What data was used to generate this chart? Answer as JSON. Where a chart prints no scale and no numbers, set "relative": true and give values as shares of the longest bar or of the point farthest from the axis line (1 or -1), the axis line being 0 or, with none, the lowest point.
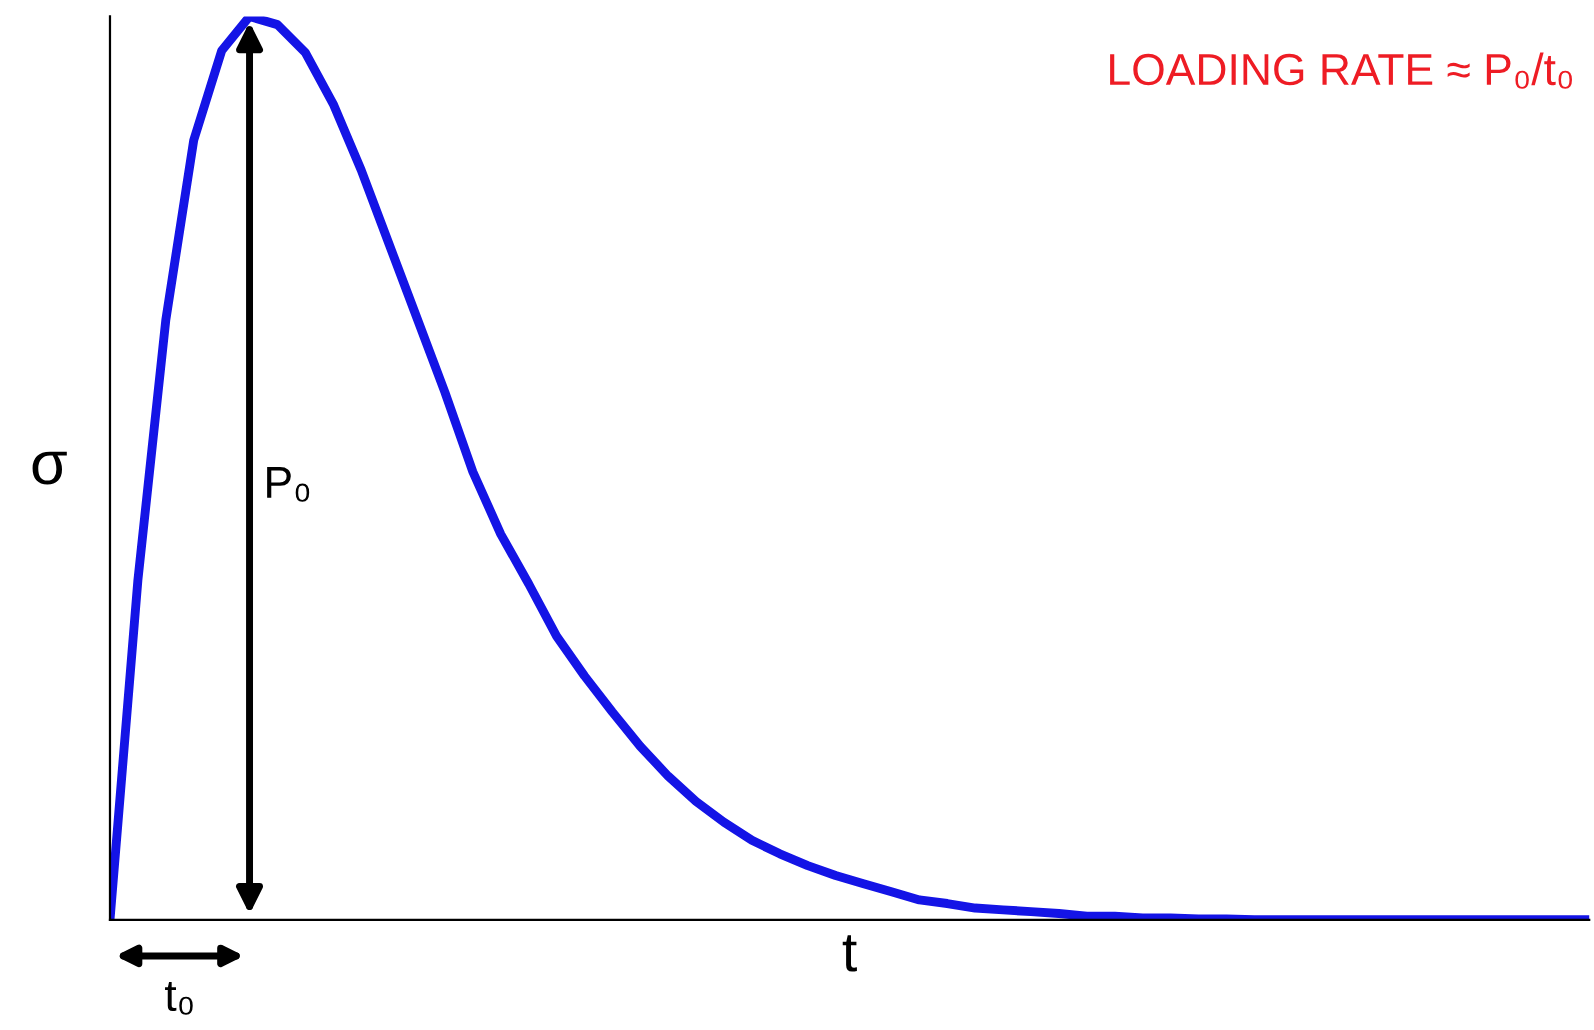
{
  "chart_data": {
    "type": "line",
    "relative": true,
    "xlabel": "t",
    "ylabel": "σ",
    "annotations": [
      "P₀",
      "t₀",
      "LOADING RATE ≈ P₀/t₀"
    ],
    "categories": [
      null,
      null,
      null,
      null,
      null,
      null,
      null,
      null,
      null,
      null,
      null,
      null,
      null,
      null,
      null,
      null,
      null,
      null,
      null,
      null,
      null,
      null,
      null,
      null,
      null,
      null,
      null,
      null,
      null,
      null,
      null,
      null,
      null,
      null,
      null,
      null,
      null,
      null,
      null,
      null,
      null,
      null,
      null,
      null,
      null,
      null,
      null,
      null,
      null,
      null,
      null,
      null,
      null,
      null
    ],
    "series": [
      {
        "color": "#1414e6",
        "values": [
          0,
          0.376,
          0.664,
          0.863,
          0.962,
          1.0,
          0.991,
          0.96,
          0.903,
          0.83,
          0.748,
          0.666,
          0.584,
          0.496,
          0.427,
          0.372,
          0.314,
          0.27,
          0.23,
          0.192,
          0.159,
          0.131,
          0.108,
          0.088,
          0.073,
          0.06,
          0.049,
          0.04,
          0.031,
          0.022,
          0.018,
          0.013,
          0.011,
          0.009,
          0.007,
          0.004,
          0.004,
          0.002,
          0.002,
          0.001,
          0.001,
          0,
          0,
          0,
          0,
          0,
          0,
          0,
          0,
          0,
          0,
          0,
          0,
          0
        ]
      }
    ],
    "legend": false,
    "tick_labels": false,
    "marker": "none",
    "line_style": "solid"
  }
}
